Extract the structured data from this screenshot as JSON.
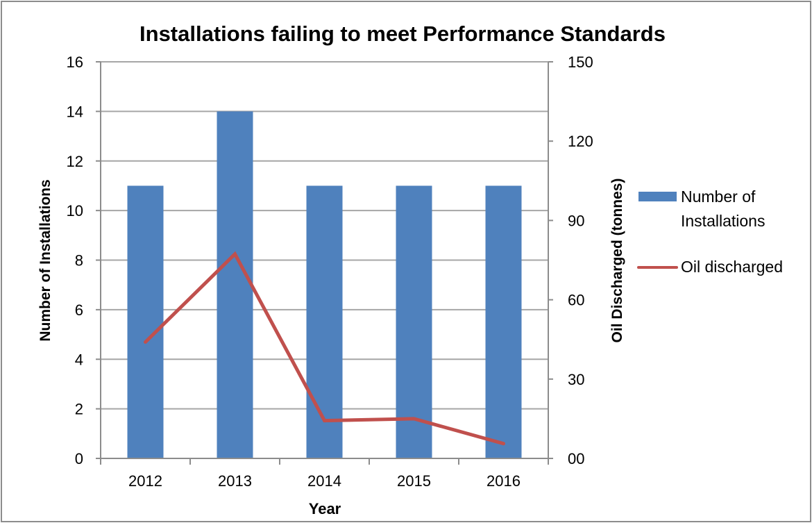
{
  "chart_data": {
    "type": "bar+line",
    "title": "Installations failing to meet Performance Standards",
    "xlabel": "Year",
    "ylabel": "Number of Installations",
    "y2label": "Oil Discharged (tonnes)",
    "categories": [
      "2012",
      "2013",
      "2014",
      "2015",
      "2016"
    ],
    "ylim": [
      0,
      16
    ],
    "yticks": [
      "0",
      "2",
      "4",
      "6",
      "8",
      "10",
      "12",
      "14",
      "16"
    ],
    "y2lim": [
      0,
      150
    ],
    "y2ticks": [
      "00",
      "30",
      "60",
      "90",
      "120",
      "150"
    ],
    "grid": true,
    "legend_position": "right",
    "series": [
      {
        "name": "Number of Installations",
        "type": "bar",
        "axis": "left",
        "color": "#4f81bd",
        "values": [
          11,
          14,
          11,
          11,
          11
        ]
      },
      {
        "name": "Oil discharged",
        "type": "line",
        "axis": "right",
        "color": "#c0504d",
        "values": [
          44.0,
          77.3,
          14.3,
          15.0,
          5.6
        ]
      }
    ],
    "legend": [
      "Number of",
      "Installations",
      "Oil discharged"
    ]
  }
}
